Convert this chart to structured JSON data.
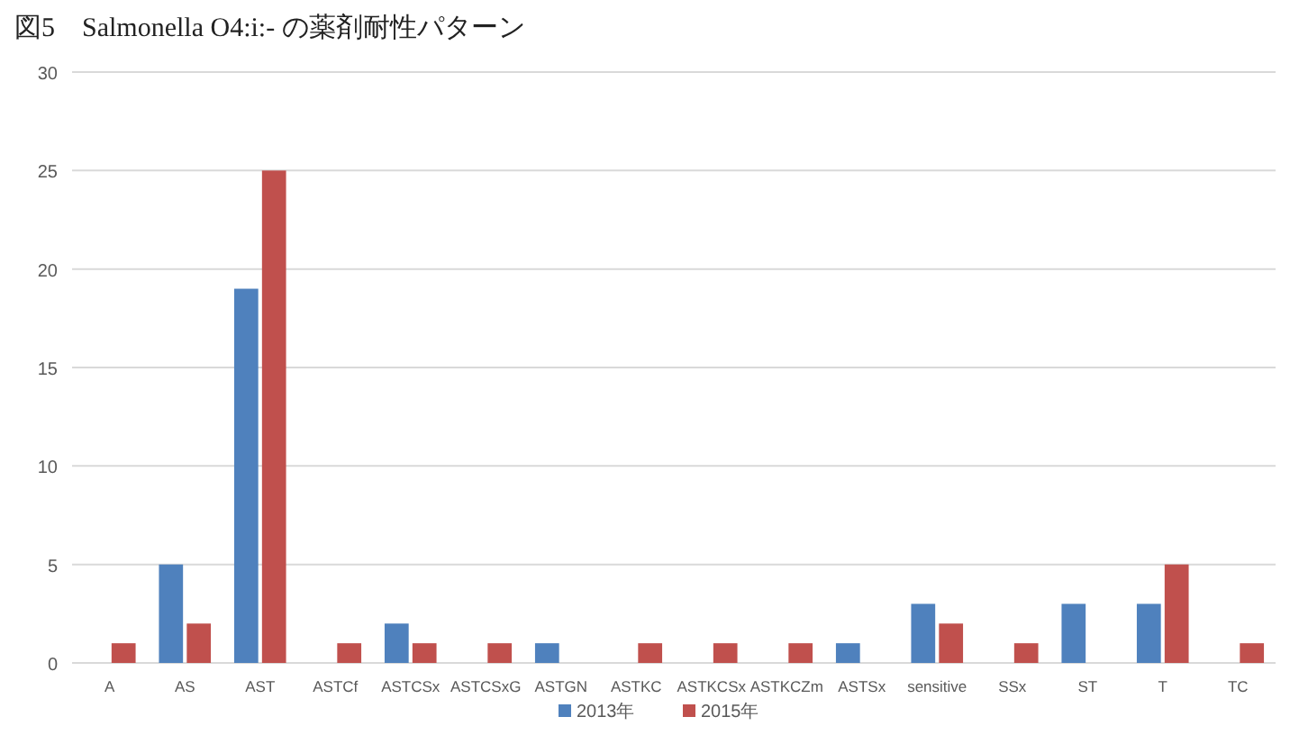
{
  "chart_data": {
    "type": "bar",
    "title": "図5　Salmonella O4:i:- の薬剤耐性パターン",
    "categories": [
      "A",
      "AS",
      "AST",
      "ASTCf",
      "ASTCSx",
      "ASTCSxG",
      "ASTGN",
      "ASTKC",
      "ASTKCSx",
      "ASTKCZm",
      "ASTSx",
      "sensitive",
      "SSx",
      "ST",
      "T",
      "TC"
    ],
    "series": [
      {
        "name": "2013年",
        "color": "#4f81bd",
        "values": [
          null,
          5,
          19,
          null,
          2,
          null,
          1,
          null,
          null,
          null,
          1,
          3,
          null,
          3,
          3,
          null
        ]
      },
      {
        "name": "2015年",
        "color": "#c0504d",
        "values": [
          1,
          2,
          25,
          1,
          1,
          1,
          null,
          1,
          1,
          1,
          null,
          2,
          1,
          null,
          5,
          1
        ]
      }
    ],
    "ylim": [
      0,
      30
    ],
    "yticks": [
      0,
      5,
      10,
      15,
      20,
      25,
      30
    ],
    "grid": "y",
    "legend": "bottom"
  }
}
